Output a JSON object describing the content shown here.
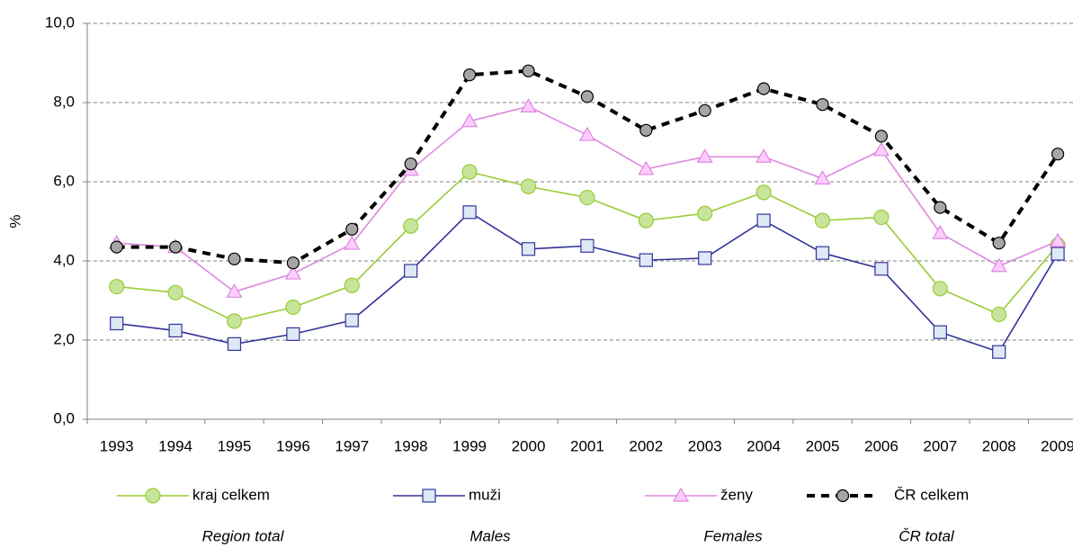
{
  "chart_data": {
    "type": "line",
    "y_label": "%",
    "categories": [
      "1993",
      "1994",
      "1995",
      "1996",
      "1997",
      "1998",
      "1999",
      "2000",
      "2001",
      "2002",
      "2003",
      "2004",
      "2005",
      "2006",
      "2007",
      "2008",
      "2009"
    ],
    "ylim": [
      0,
      10
    ],
    "yticks": [
      {
        "value": 0,
        "label": "0,0"
      },
      {
        "value": 2,
        "label": "2,0"
      },
      {
        "value": 4,
        "label": "4,0"
      },
      {
        "value": 6,
        "label": "6,0"
      },
      {
        "value": 8,
        "label": "8,0"
      },
      {
        "value": 10,
        "label": "10,0"
      }
    ],
    "grid": true,
    "legend": "bottom",
    "series": [
      {
        "name": "kraj celkem",
        "subtitle": "Region total",
        "color": "#99cc33",
        "marker": "circle",
        "marker_fill": "#c6e59b",
        "dashed": false,
        "values": [
          3.35,
          3.2,
          2.48,
          2.83,
          3.38,
          4.88,
          6.25,
          5.88,
          5.6,
          5.02,
          5.2,
          5.73,
          5.02,
          5.1,
          3.3,
          2.65,
          4.4
        ]
      },
      {
        "name": "muži",
        "subtitle": "Males",
        "color": "#333399",
        "marker": "square",
        "marker_fill": "#dde9f5",
        "dashed": false,
        "values": [
          2.42,
          2.24,
          1.9,
          2.15,
          2.5,
          3.75,
          5.23,
          4.3,
          4.38,
          4.02,
          4.07,
          5.02,
          4.2,
          3.8,
          2.2,
          1.7,
          4.18
        ]
      },
      {
        "name": "ženy",
        "subtitle": "Females",
        "color": "#dd88dd",
        "marker": "triangle",
        "marker_fill": "#ffccff",
        "dashed": false,
        "values": [
          4.45,
          4.35,
          3.22,
          3.68,
          4.43,
          6.3,
          7.53,
          7.9,
          7.18,
          6.32,
          6.63,
          6.63,
          6.08,
          6.8,
          4.7,
          3.87,
          4.5
        ]
      },
      {
        "name": "ČR celkem",
        "subtitle": "ČR total",
        "color": "#000000",
        "marker": "circle",
        "marker_fill": "#a6a6a6",
        "dashed": true,
        "values": [
          4.35,
          4.35,
          4.05,
          3.95,
          4.8,
          6.45,
          8.7,
          8.8,
          8.15,
          7.3,
          7.8,
          8.35,
          7.95,
          7.15,
          5.35,
          4.45,
          6.7
        ]
      }
    ]
  }
}
